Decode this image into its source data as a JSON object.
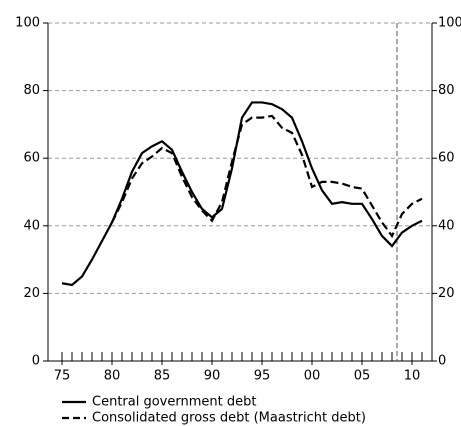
{
  "chart_data": {
    "type": "line",
    "x": [
      1975,
      1976,
      1977,
      1978,
      1979,
      1980,
      1981,
      1982,
      1983,
      1984,
      1985,
      1986,
      1987,
      1988,
      1989,
      1990,
      1991,
      1992,
      1993,
      1994,
      1995,
      1996,
      1997,
      1998,
      1999,
      2000,
      2001,
      2002,
      2003,
      2004,
      2005,
      2006,
      2007,
      2008,
      2009,
      2010,
      2011
    ],
    "series": [
      {
        "name": "Central government debt",
        "color": "#000000",
        "dash": false,
        "values": [
          23,
          22.5,
          25,
          30,
          35.5,
          41,
          48,
          56,
          61.5,
          63.5,
          65,
          62.5,
          56,
          50,
          45,
          42.5,
          45,
          57,
          72,
          76.5,
          76.5,
          76,
          74.5,
          72,
          65,
          57,
          50.5,
          46.5,
          47,
          46.5,
          46.5,
          42,
          37,
          34,
          38,
          40,
          41.5
        ]
      },
      {
        "name": "Consolidated gross debt (Maastricht debt)",
        "color": "#000000",
        "dash": true,
        "values": [
          null,
          null,
          null,
          null,
          null,
          41,
          47,
          54,
          58.5,
          60.5,
          63,
          61.5,
          54.5,
          48.5,
          44.5,
          41.5,
          47,
          59,
          70,
          72,
          72,
          72.5,
          69,
          67.5,
          61,
          51.5,
          53,
          53,
          52.5,
          51.5,
          51,
          46,
          41,
          37,
          43.5,
          46.5,
          48
        ]
      }
    ],
    "xlim": [
      1973.6,
      2012
    ],
    "xticks": [
      {
        "value": 1975,
        "label": "75"
      },
      {
        "value": 1980,
        "label": "80"
      },
      {
        "value": 1985,
        "label": "85"
      },
      {
        "value": 1990,
        "label": "90"
      },
      {
        "value": 1995,
        "label": "95"
      },
      {
        "value": 2000,
        "label": "00"
      },
      {
        "value": 2005,
        "label": "05"
      },
      {
        "value": 2010,
        "label": "10"
      }
    ],
    "xminorticks": [
      1976,
      1977,
      1978,
      1979,
      1981,
      1982,
      1983,
      1984,
      1986,
      1987,
      1988,
      1989,
      1991,
      1992,
      1993,
      1994,
      1996,
      1997,
      1998,
      1999,
      2001,
      2002,
      2003,
      2004,
      2006,
      2007,
      2008,
      2009,
      2011
    ],
    "ylim": [
      0,
      100
    ],
    "yticks": [
      0,
      20,
      40,
      60,
      80,
      100
    ],
    "y2lim": [
      0,
      100
    ],
    "y2ticks": [
      0,
      20,
      40,
      60,
      80,
      100
    ],
    "vline": 2008.5,
    "grid": true
  }
}
